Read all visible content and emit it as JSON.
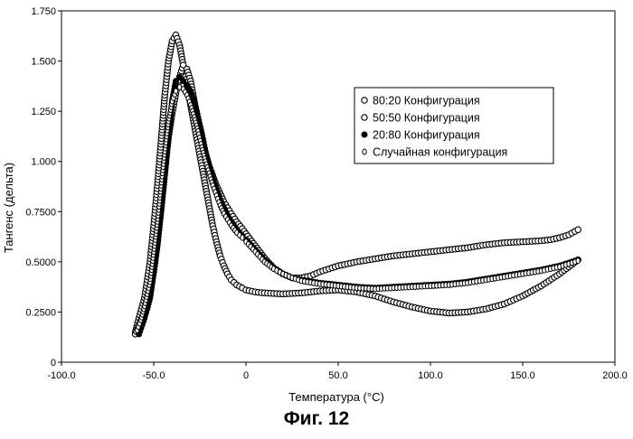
{
  "caption": "Фиг. 12",
  "chart_data": {
    "type": "scatter",
    "title": "",
    "xlabel": "Температура (°C)",
    "ylabel": "Тангенс (дельта)",
    "xlim": [
      -100,
      200
    ],
    "ylim": [
      0,
      1.75
    ],
    "x_ticks": [
      -100,
      -50,
      0,
      50,
      100,
      150,
      200
    ],
    "x_tick_labels": [
      "-100.0",
      "-50.0",
      "0",
      "50.0",
      "100.0",
      "150.0",
      "200.0"
    ],
    "y_ticks": [
      0,
      0.25,
      0.5,
      0.75,
      1.0,
      1.25,
      1.5,
      1.75
    ],
    "y_tick_labels": [
      "0",
      "0.2500",
      "0.5000",
      "0.7500",
      "1.000",
      "1.250",
      "1.500",
      "1.750"
    ],
    "grid": false,
    "legend_position": "right",
    "series": [
      {
        "name": "80:20 Конфигурация",
        "marker": "open-circle",
        "color": "#000000",
        "points": [
          [
            -60,
            0.15
          ],
          [
            -58,
            0.22
          ],
          [
            -55,
            0.32
          ],
          [
            -52,
            0.5
          ],
          [
            -50,
            0.68
          ],
          [
            -48,
            0.88
          ],
          [
            -46,
            1.1
          ],
          [
            -44,
            1.33
          ],
          [
            -42,
            1.5
          ],
          [
            -40,
            1.6
          ],
          [
            -38,
            1.63
          ],
          [
            -36,
            1.58
          ],
          [
            -34,
            1.48
          ],
          [
            -32,
            1.38
          ],
          [
            -30,
            1.28
          ],
          [
            -28,
            1.18
          ],
          [
            -26,
            1.08
          ],
          [
            -24,
            0.98
          ],
          [
            -22,
            0.88
          ],
          [
            -20,
            0.78
          ],
          [
            -18,
            0.68
          ],
          [
            -16,
            0.6
          ],
          [
            -14,
            0.53
          ],
          [
            -12,
            0.48
          ],
          [
            -10,
            0.44
          ],
          [
            -8,
            0.41
          ],
          [
            -5,
            0.385
          ],
          [
            -2,
            0.37
          ],
          [
            0,
            0.36
          ],
          [
            5,
            0.35
          ],
          [
            10,
            0.345
          ],
          [
            20,
            0.34
          ],
          [
            30,
            0.345
          ],
          [
            40,
            0.355
          ],
          [
            50,
            0.36
          ],
          [
            60,
            0.35
          ],
          [
            70,
            0.33
          ],
          [
            80,
            0.3
          ],
          [
            90,
            0.275
          ],
          [
            100,
            0.255
          ],
          [
            110,
            0.245
          ],
          [
            120,
            0.25
          ],
          [
            130,
            0.265
          ],
          [
            140,
            0.29
          ],
          [
            150,
            0.33
          ],
          [
            160,
            0.38
          ],
          [
            170,
            0.44
          ],
          [
            180,
            0.51
          ]
        ]
      },
      {
        "name": "50:50 Конфигурация",
        "marker": "open-circle",
        "color": "#000000",
        "points": [
          [
            -60,
            0.14
          ],
          [
            -58,
            0.18
          ],
          [
            -55,
            0.25
          ],
          [
            -52,
            0.35
          ],
          [
            -50,
            0.45
          ],
          [
            -48,
            0.6
          ],
          [
            -46,
            0.78
          ],
          [
            -44,
            0.96
          ],
          [
            -42,
            1.12
          ],
          [
            -40,
            1.24
          ],
          [
            -38,
            1.34
          ],
          [
            -36,
            1.42
          ],
          [
            -34,
            1.48
          ],
          [
            -32,
            1.46
          ],
          [
            -30,
            1.4
          ],
          [
            -28,
            1.3
          ],
          [
            -26,
            1.2
          ],
          [
            -24,
            1.12
          ],
          [
            -22,
            1.04
          ],
          [
            -20,
            0.98
          ],
          [
            -18,
            0.93
          ],
          [
            -16,
            0.88
          ],
          [
            -14,
            0.84
          ],
          [
            -12,
            0.8
          ],
          [
            -10,
            0.77
          ],
          [
            -8,
            0.74
          ],
          [
            -5,
            0.7
          ],
          [
            -2,
            0.665
          ],
          [
            0,
            0.64
          ],
          [
            5,
            0.58
          ],
          [
            10,
            0.52
          ],
          [
            15,
            0.47
          ],
          [
            20,
            0.44
          ],
          [
            25,
            0.42
          ],
          [
            30,
            0.42
          ],
          [
            35,
            0.43
          ],
          [
            40,
            0.45
          ],
          [
            45,
            0.465
          ],
          [
            50,
            0.48
          ],
          [
            60,
            0.5
          ],
          [
            70,
            0.515
          ],
          [
            80,
            0.53
          ],
          [
            90,
            0.54
          ],
          [
            100,
            0.55
          ],
          [
            110,
            0.56
          ],
          [
            120,
            0.57
          ],
          [
            130,
            0.585
          ],
          [
            140,
            0.595
          ],
          [
            150,
            0.6
          ],
          [
            160,
            0.605
          ],
          [
            165,
            0.61
          ],
          [
            170,
            0.62
          ],
          [
            175,
            0.635
          ],
          [
            180,
            0.66
          ]
        ]
      },
      {
        "name": "20:80 Конфигурация",
        "marker": "filled-circle",
        "color": "#000000",
        "points": [
          [
            -58,
            0.14
          ],
          [
            -55,
            0.22
          ],
          [
            -52,
            0.32
          ],
          [
            -50,
            0.45
          ],
          [
            -48,
            0.58
          ],
          [
            -46,
            0.75
          ],
          [
            -44,
            0.93
          ],
          [
            -42,
            1.12
          ],
          [
            -40,
            1.3
          ],
          [
            -38,
            1.4
          ],
          [
            -36,
            1.42
          ],
          [
            -34,
            1.4
          ],
          [
            -32,
            1.38
          ],
          [
            -30,
            1.35
          ],
          [
            -28,
            1.3
          ],
          [
            -26,
            1.22
          ],
          [
            -24,
            1.14
          ],
          [
            -22,
            1.05
          ],
          [
            -20,
            0.98
          ],
          [
            -18,
            0.92
          ],
          [
            -16,
            0.86
          ],
          [
            -14,
            0.81
          ],
          [
            -12,
            0.77
          ],
          [
            -10,
            0.73
          ],
          [
            -8,
            0.7
          ],
          [
            -5,
            0.66
          ],
          [
            -2,
            0.63
          ],
          [
            0,
            0.61
          ],
          [
            5,
            0.56
          ],
          [
            10,
            0.51
          ],
          [
            15,
            0.47
          ],
          [
            20,
            0.44
          ],
          [
            25,
            0.42
          ],
          [
            30,
            0.41
          ],
          [
            40,
            0.395
          ],
          [
            50,
            0.385
          ],
          [
            60,
            0.375
          ],
          [
            70,
            0.37
          ],
          [
            80,
            0.375
          ],
          [
            90,
            0.38
          ],
          [
            100,
            0.385
          ],
          [
            110,
            0.39
          ],
          [
            120,
            0.4
          ],
          [
            130,
            0.415
          ],
          [
            140,
            0.43
          ],
          [
            150,
            0.445
          ],
          [
            160,
            0.46
          ],
          [
            170,
            0.48
          ],
          [
            180,
            0.51
          ]
        ]
      },
      {
        "name": "Случайная конфигурация",
        "marker": "small-open-circle",
        "color": "#000000",
        "points": [
          [
            -59,
            0.16
          ],
          [
            -57,
            0.21
          ],
          [
            -55,
            0.28
          ],
          [
            -52,
            0.4
          ],
          [
            -50,
            0.55
          ],
          [
            -48,
            0.7
          ],
          [
            -46,
            0.88
          ],
          [
            -44,
            1.05
          ],
          [
            -42,
            1.2
          ],
          [
            -40,
            1.3
          ],
          [
            -38,
            1.35
          ],
          [
            -36,
            1.37
          ],
          [
            -34,
            1.36
          ],
          [
            -32,
            1.33
          ],
          [
            -30,
            1.28
          ],
          [
            -28,
            1.22
          ],
          [
            -26,
            1.15
          ],
          [
            -24,
            1.07
          ],
          [
            -22,
            1.0
          ],
          [
            -20,
            0.94
          ],
          [
            -18,
            0.88
          ],
          [
            -16,
            0.83
          ],
          [
            -14,
            0.78
          ],
          [
            -12,
            0.74
          ],
          [
            -10,
            0.71
          ],
          [
            -8,
            0.68
          ],
          [
            -5,
            0.645
          ],
          [
            -2,
            0.62
          ],
          [
            0,
            0.6
          ],
          [
            5,
            0.55
          ],
          [
            10,
            0.5
          ],
          [
            15,
            0.465
          ],
          [
            20,
            0.44
          ],
          [
            25,
            0.42
          ],
          [
            30,
            0.405
          ],
          [
            40,
            0.39
          ],
          [
            50,
            0.38
          ],
          [
            60,
            0.37
          ],
          [
            70,
            0.365
          ],
          [
            80,
            0.37
          ],
          [
            90,
            0.375
          ],
          [
            100,
            0.38
          ],
          [
            110,
            0.385
          ],
          [
            120,
            0.395
          ],
          [
            130,
            0.41
          ],
          [
            140,
            0.425
          ],
          [
            150,
            0.44
          ],
          [
            160,
            0.455
          ],
          [
            170,
            0.475
          ],
          [
            180,
            0.505
          ]
        ]
      }
    ]
  }
}
